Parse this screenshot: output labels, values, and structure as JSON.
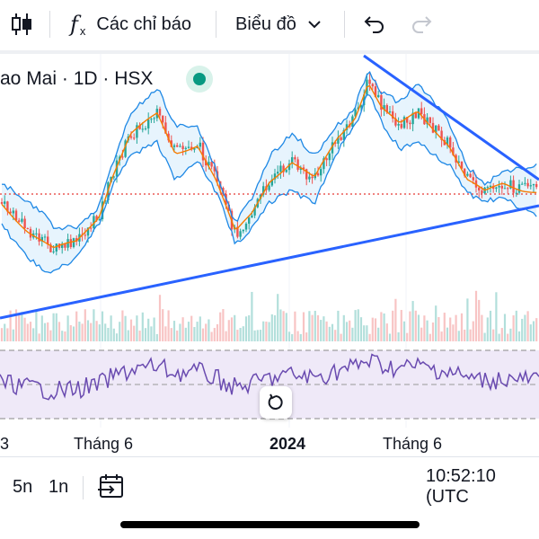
{
  "toolbar": {
    "indicators_label": "Các chỉ báo",
    "chart_type_label": "Biểu đồ"
  },
  "symbol": {
    "title": "ao Mai · 1D · HSX"
  },
  "xaxis": {
    "labels": [
      "3",
      "Tháng 6",
      "2024",
      "Tháng 6"
    ]
  },
  "bottom": {
    "range_5y": "5n",
    "range_1y": "1n",
    "clock": "10:52:10 (UTC"
  },
  "colors": {
    "bollinger": "#1e88e5",
    "band_fill": "#e3f2fd",
    "ma": "#f57c00",
    "trendline": "#2962ff",
    "rsi": "#6a4bb0",
    "rsi_fill": "#efe9f8",
    "up": "#26a69a",
    "down": "#ef5350",
    "price_line": "#e53935"
  }
}
